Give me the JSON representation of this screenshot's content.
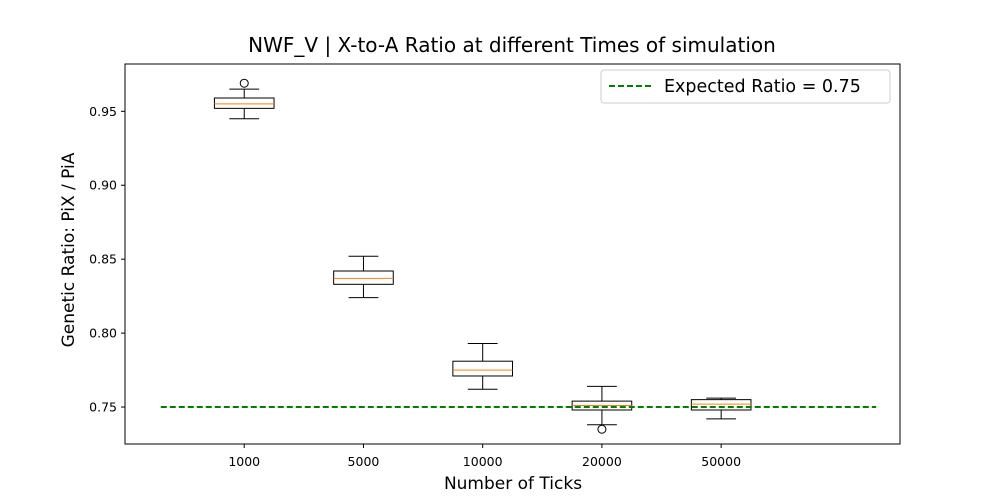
{
  "chart_data": {
    "type": "box",
    "title": "NWF_V | X-to-A Ratio at different Times of simulation",
    "xlabel": "Number of Ticks",
    "ylabel": "Genetic Ratio: PiX / PiA",
    "categories": [
      "1000",
      "5000",
      "10000",
      "20000",
      "50000"
    ],
    "ylim": [
      0.725,
      0.982
    ],
    "xlim": [
      0,
      6.5
    ],
    "yticks": [
      0.75,
      0.8,
      0.85,
      0.9,
      0.95
    ],
    "ytick_labels": [
      "0.75",
      "0.80",
      "0.85",
      "0.90",
      "0.95"
    ],
    "grid": false,
    "legend_position": "top-right",
    "boxes": [
      {
        "category": "1000",
        "whisker_low": 0.945,
        "q1": 0.952,
        "median": 0.955,
        "q3": 0.959,
        "whisker_high": 0.965,
        "outliers": [
          0.969
        ]
      },
      {
        "category": "5000",
        "whisker_low": 0.824,
        "q1": 0.833,
        "median": 0.837,
        "q3": 0.842,
        "whisker_high": 0.852,
        "outliers": []
      },
      {
        "category": "10000",
        "whisker_low": 0.762,
        "q1": 0.771,
        "median": 0.775,
        "q3": 0.781,
        "whisker_high": 0.793,
        "outliers": []
      },
      {
        "category": "20000",
        "whisker_low": 0.738,
        "q1": 0.748,
        "median": 0.751,
        "q3": 0.754,
        "whisker_high": 0.764,
        "outliers": [
          0.735
        ]
      },
      {
        "category": "50000",
        "whisker_low": 0.742,
        "q1": 0.748,
        "median": 0.752,
        "q3": 0.755,
        "whisker_high": 0.756,
        "outliers": []
      }
    ],
    "reference_line": {
      "label": "Expected Ratio = 0.75",
      "y": 0.75,
      "x_range": [
        0.3,
        6.3
      ],
      "color": "#008000",
      "style": "dashed"
    },
    "colors": {
      "box": "#000000",
      "median": "#ff7f0e"
    }
  }
}
